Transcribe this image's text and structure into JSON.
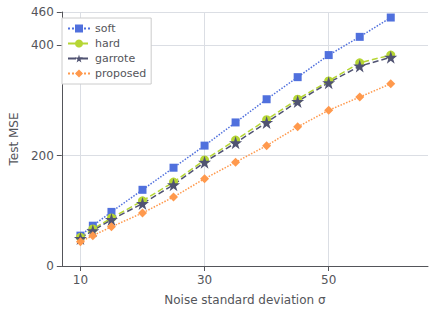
{
  "chart_data": {
    "type": "line",
    "xlabel": "Noise standard deviation σ",
    "ylabel": "Test MSE",
    "x": [
      10,
      12,
      15,
      20,
      25,
      30,
      35,
      40,
      45,
      50,
      55,
      60
    ],
    "series": [
      {
        "name": "soft",
        "values": [
          55,
          73,
          98,
          138,
          178,
          218,
          260,
          302,
          342,
          382,
          415,
          450
        ],
        "marker": "square",
        "line_style": "dotted"
      },
      {
        "name": "hard",
        "values": [
          52,
          67,
          87,
          118,
          152,
          192,
          228,
          265,
          302,
          335,
          368,
          382
        ],
        "marker": "circle",
        "line_style": "dashed"
      },
      {
        "name": "garrote",
        "values": [
          50,
          64,
          84,
          113,
          147,
          188,
          223,
          260,
          298,
          332,
          362,
          378
        ],
        "marker": "star",
        "line_style": "dashed"
      },
      {
        "name": "proposed",
        "values": [
          44,
          55,
          71,
          96,
          125,
          158,
          188,
          218,
          252,
          282,
          306,
          330
        ],
        "marker": "diamond",
        "line_style": "dotted"
      }
    ],
    "xlim": [
      7,
      66
    ],
    "ylim": [
      0,
      460
    ],
    "xticks": [
      10,
      30,
      50
    ],
    "yticks": [
      0,
      200,
      400
    ],
    "grid": true,
    "legend": "upper left"
  }
}
